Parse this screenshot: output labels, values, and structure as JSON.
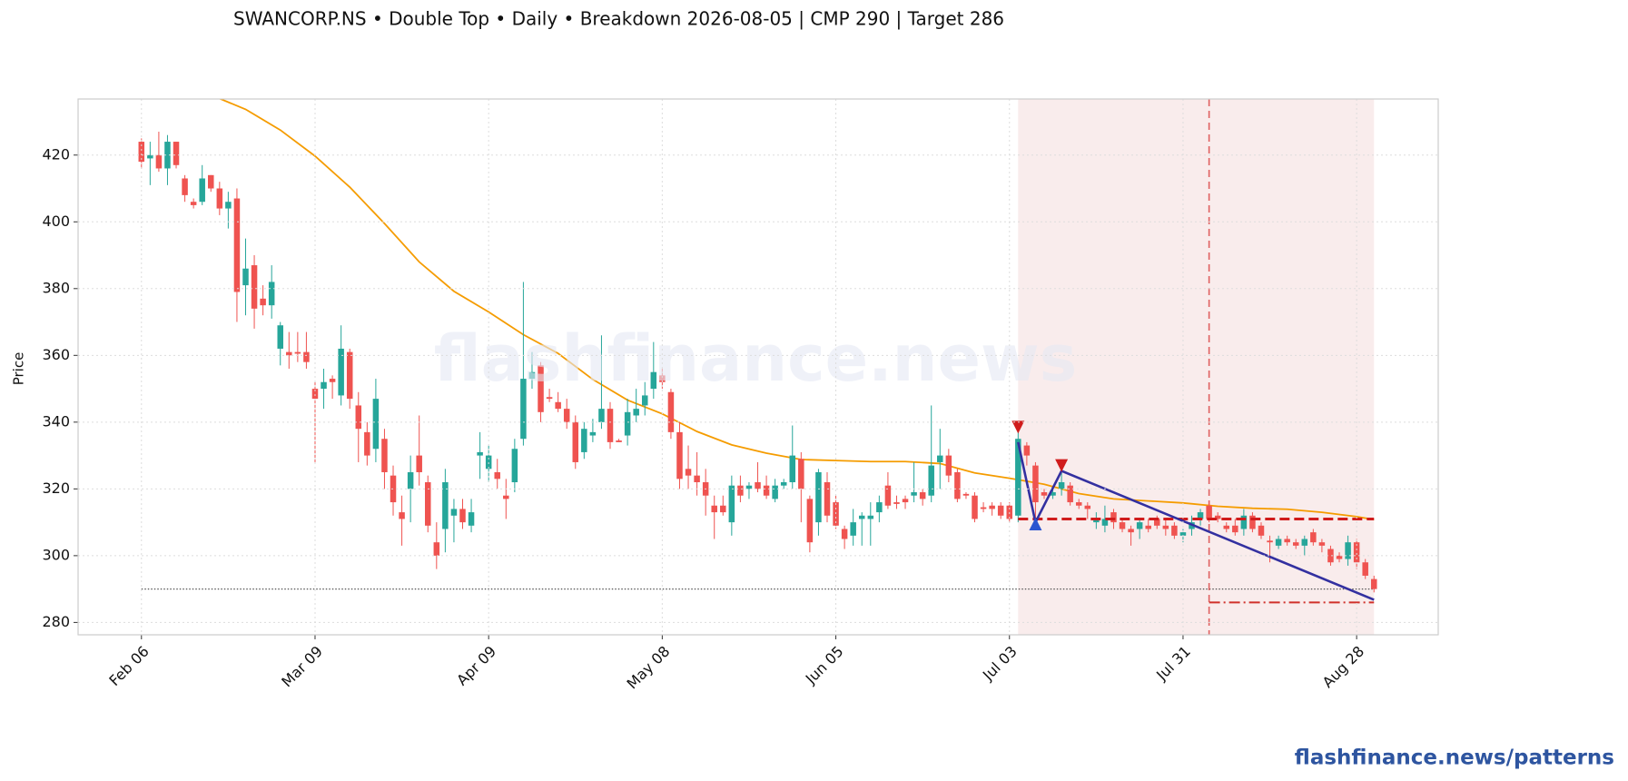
{
  "chart_data": {
    "type": "candlestick",
    "title": "SWANCORP.NS  •  Double Top  •  Daily  •  Breakdown 2026-08-05  |  CMP 290  |  Target 286",
    "y_label": "Price",
    "watermark": "flashfinance.news",
    "footer": "flashfinance.news/patterns",
    "xlim": [
      -7.3,
      149.4
    ],
    "xticks": [
      {
        "value": 0,
        "label": "Feb 06"
      },
      {
        "value": 20,
        "label": "Mar 09"
      },
      {
        "value": 40,
        "label": "Apr 09"
      },
      {
        "value": 60,
        "label": "May 08"
      },
      {
        "value": 80,
        "label": "Jun 05"
      },
      {
        "value": 100,
        "label": "Jul 03"
      },
      {
        "value": 120,
        "label": "Jul 31"
      },
      {
        "value": 140,
        "label": "Aug 28"
      }
    ],
    "ylim": [
      276.3,
      436.8
    ],
    "yticks": [
      280,
      300,
      320,
      340,
      360,
      380,
      400,
      420
    ],
    "grid": true,
    "up_color": "#26a69a",
    "down_color": "#ef5350",
    "ohlc": [
      [
        424,
        425,
        416,
        418
      ],
      [
        419,
        424,
        411,
        420
      ],
      [
        420,
        427,
        415,
        416
      ],
      [
        416,
        426,
        411,
        424
      ],
      [
        424,
        424,
        416,
        417
      ],
      [
        413,
        414,
        406,
        408
      ],
      [
        406,
        407,
        404,
        405
      ],
      [
        406,
        417,
        405,
        413
      ],
      [
        414,
        414,
        409,
        410
      ],
      [
        410,
        412,
        402,
        404
      ],
      [
        404,
        409,
        398,
        406
      ],
      [
        407,
        410,
        370,
        379
      ],
      [
        381,
        395,
        372,
        386
      ],
      [
        387,
        390,
        368,
        374
      ],
      [
        377,
        381,
        372,
        375
      ],
      [
        375,
        387,
        371,
        382
      ],
      [
        362,
        370,
        357,
        369
      ],
      [
        361,
        367,
        356,
        360
      ],
      [
        361,
        367,
        358,
        360.5
      ],
      [
        361,
        367,
        356,
        358
      ],
      [
        350,
        352,
        328,
        347
      ],
      [
        350,
        356,
        344,
        352
      ],
      [
        353,
        354,
        347,
        352
      ],
      [
        348,
        369,
        345,
        362
      ],
      [
        361,
        362,
        344,
        347
      ],
      [
        345,
        349,
        328,
        338
      ],
      [
        337,
        340,
        327,
        330
      ],
      [
        332,
        353,
        328,
        347
      ],
      [
        335,
        338,
        320,
        325
      ],
      [
        324,
        327,
        312,
        316
      ],
      [
        313,
        318,
        303,
        311
      ],
      [
        320,
        330,
        310,
        325
      ],
      [
        330,
        342,
        321,
        325
      ],
      [
        322,
        324,
        307,
        309
      ],
      [
        304,
        310,
        296,
        300
      ],
      [
        308,
        326,
        301,
        322
      ],
      [
        312,
        317,
        304,
        314
      ],
      [
        314,
        317,
        308,
        310
      ],
      [
        309,
        317,
        307,
        313
      ],
      [
        330,
        337,
        323,
        331
      ],
      [
        326,
        333,
        322,
        330
      ],
      [
        325,
        329,
        320,
        323
      ],
      [
        318,
        323,
        311,
        317
      ],
      [
        322,
        335,
        319,
        332
      ],
      [
        335,
        382,
        333,
        353
      ],
      [
        353,
        361,
        350,
        355
      ],
      [
        357,
        358,
        340,
        343
      ],
      [
        347.5,
        350,
        346,
        347
      ],
      [
        346,
        349,
        343,
        344
      ],
      [
        344,
        347,
        338,
        340
      ],
      [
        340,
        342,
        326,
        328
      ],
      [
        331,
        340,
        329,
        338
      ],
      [
        336,
        341,
        334,
        337
      ],
      [
        340,
        366,
        338,
        344
      ],
      [
        344,
        346,
        332,
        334
      ],
      [
        334.5,
        335,
        334,
        334
      ],
      [
        336,
        347,
        333,
        343
      ],
      [
        342,
        350,
        340,
        344
      ],
      [
        345,
        352,
        342,
        348
      ],
      [
        350,
        364,
        347,
        355
      ],
      [
        354,
        356,
        350,
        352
      ],
      [
        349,
        350,
        335,
        337
      ],
      [
        337,
        340,
        320,
        323
      ],
      [
        326,
        333,
        320,
        324
      ],
      [
        324,
        331,
        318,
        322
      ],
      [
        322,
        326,
        312,
        318
      ],
      [
        315,
        318,
        305,
        313
      ],
      [
        315,
        318,
        312,
        313
      ],
      [
        310,
        324,
        306,
        321
      ],
      [
        321,
        324,
        316,
        318
      ],
      [
        320,
        322,
        317,
        321
      ],
      [
        322,
        328,
        319,
        320
      ],
      [
        321,
        324,
        317,
        318
      ],
      [
        317,
        323,
        316,
        321
      ],
      [
        321,
        323,
        320,
        322
      ],
      [
        322,
        339,
        320,
        330
      ],
      [
        329,
        331,
        310,
        320
      ],
      [
        317,
        318,
        301,
        304
      ],
      [
        310,
        326,
        306,
        325
      ],
      [
        322,
        325,
        310,
        312
      ],
      [
        316,
        318,
        308,
        309
      ],
      [
        308,
        309,
        302,
        305
      ],
      [
        306,
        314,
        303,
        310
      ],
      [
        311,
        313,
        303,
        312
      ],
      [
        311,
        316,
        303,
        312
      ],
      [
        313,
        318,
        310,
        316
      ],
      [
        321,
        325,
        314,
        315
      ],
      [
        316,
        318,
        314,
        315.5
      ],
      [
        317,
        318,
        314,
        316
      ],
      [
        318,
        328,
        316,
        319
      ],
      [
        319,
        320,
        315,
        317
      ],
      [
        318,
        345,
        316,
        327
      ],
      [
        328,
        338,
        320,
        330
      ],
      [
        330,
        332,
        322,
        324
      ],
      [
        325,
        326,
        316,
        317
      ],
      [
        318.5,
        319,
        317,
        318
      ],
      [
        318,
        319,
        310,
        311
      ],
      [
        314.5,
        316,
        313,
        314
      ],
      [
        315,
        316,
        312,
        314
      ],
      [
        315,
        316,
        311,
        312
      ],
      [
        315,
        316,
        310,
        311
      ],
      [
        312,
        340,
        310,
        335
      ],
      [
        333,
        334,
        327,
        330
      ],
      [
        327,
        328,
        309,
        316
      ],
      [
        319,
        320,
        317,
        318
      ],
      [
        318,
        320,
        317,
        319
      ],
      [
        320,
        327,
        318,
        322
      ],
      [
        321,
        322,
        315,
        316
      ],
      [
        316,
        317,
        314,
        315
      ],
      [
        315,
        316,
        311,
        314
      ],
      [
        310,
        313,
        308,
        311
      ],
      [
        309,
        315,
        307,
        311
      ],
      [
        313,
        314,
        308,
        310
      ],
      [
        310,
        311,
        307,
        308
      ],
      [
        308,
        309,
        303,
        307
      ],
      [
        308,
        311,
        305,
        310
      ],
      [
        309,
        311,
        307,
        308
      ],
      [
        311,
        312,
        308,
        309
      ],
      [
        309,
        311,
        306,
        308
      ],
      [
        309,
        310,
        305,
        306
      ],
      [
        306,
        308,
        304,
        307
      ],
      [
        308,
        312,
        306,
        310
      ],
      [
        311,
        314,
        309,
        313
      ],
      [
        315,
        316,
        310,
        311
      ],
      [
        312,
        313,
        310,
        311
      ],
      [
        309,
        310,
        307,
        308
      ],
      [
        309,
        311,
        306,
        307
      ],
      [
        308,
        314,
        306,
        312
      ],
      [
        312,
        313,
        307,
        308
      ],
      [
        309,
        310,
        305,
        306
      ],
      [
        304.5,
        306,
        298,
        304
      ],
      [
        303,
        306,
        302,
        305
      ],
      [
        305,
        306,
        303,
        304
      ],
      [
        304,
        305,
        302,
        303
      ],
      [
        303,
        306,
        300,
        305
      ],
      [
        307,
        308,
        303,
        304
      ],
      [
        304,
        305,
        301,
        303
      ],
      [
        302,
        303,
        297,
        298
      ],
      [
        300,
        301,
        298,
        299
      ],
      [
        299,
        306,
        297,
        304
      ],
      [
        304,
        305,
        296,
        298
      ],
      [
        298,
        299,
        293,
        294
      ],
      [
        293,
        294,
        289,
        290
      ]
    ],
    "ma": {
      "color": "#f59c00",
      "x": [
        8,
        12,
        16,
        20,
        24,
        28,
        32,
        36,
        40,
        44,
        48,
        52,
        56,
        60,
        64,
        68,
        72,
        76,
        80,
        84,
        88,
        92,
        96,
        100,
        104,
        108,
        112,
        116,
        120,
        124,
        128,
        132,
        136,
        140,
        142
      ],
      "values": [
        438,
        433.7,
        427.5,
        419.7,
        410.4,
        399.5,
        388,
        379.2,
        373,
        366.2,
        360.6,
        352.8,
        346.6,
        342.5,
        337.2,
        333.2,
        330.7,
        328.8,
        328.5,
        328.2,
        328.2,
        327.6,
        324.8,
        323.2,
        321.4,
        318.6,
        317,
        316.4,
        315.8,
        314.8,
        314.2,
        313.9,
        313,
        311.7,
        310.8
      ]
    },
    "zone": {
      "x": [
        101,
        142
      ],
      "color": "#f4dada"
    },
    "pattern": {
      "color": "#3330a0",
      "x": [
        101,
        103,
        106,
        142
      ],
      "values": [
        334,
        310,
        325.4,
        286.8
      ]
    },
    "peaks": {
      "color": "#d01c1c",
      "x": [
        101,
        106
      ],
      "values": [
        338.5,
        327
      ]
    },
    "trough": {
      "color": "#2a55d0",
      "x": [
        103
      ],
      "values": [
        309.5
      ]
    },
    "neckline": {
      "value": 311,
      "x": [
        101,
        142
      ],
      "color": "#d01c1c"
    },
    "target_line": {
      "value": 286,
      "x": [
        123,
        142
      ],
      "color": "#d0302a"
    },
    "breakdown_line": {
      "x": 123,
      "color": "#e06060"
    },
    "cmp_line": {
      "value": 290,
      "x": [
        0,
        142
      ],
      "color": "#555555"
    }
  }
}
